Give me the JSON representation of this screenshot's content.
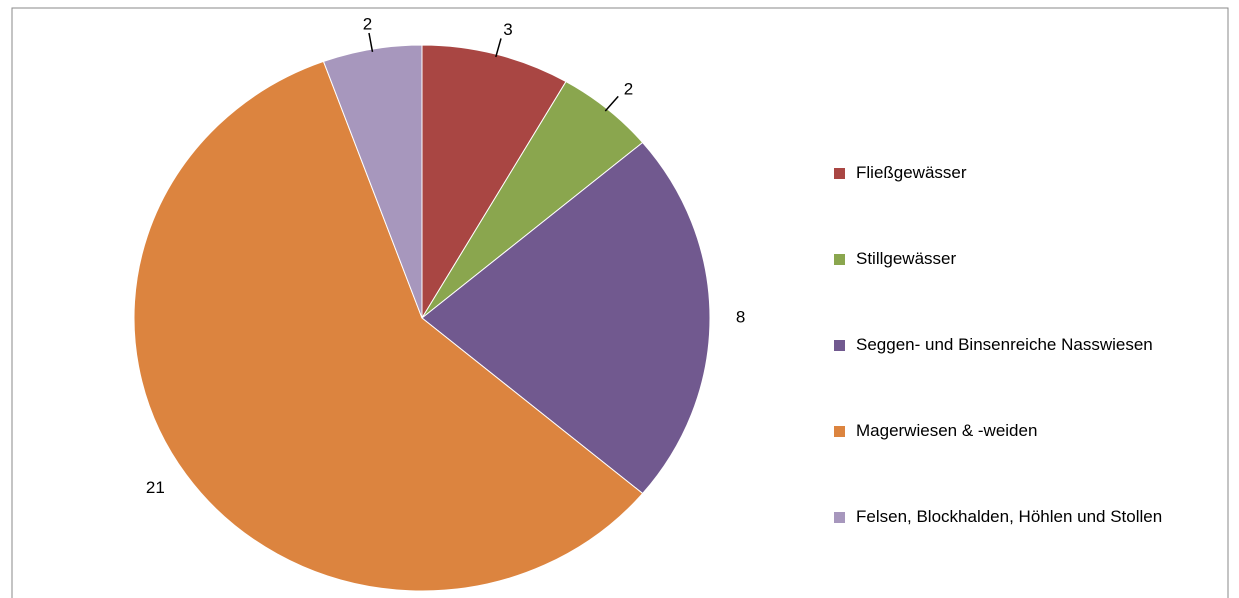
{
  "chart_data": {
    "type": "pie",
    "categories": [
      "Fließgewässer",
      "Stillgewässer",
      "Seggen- und Binsenreiche  Nasswiesen",
      "Magerwiesen & -weiden",
      "Felsen, Blockhalden, Höhlen und Stollen"
    ],
    "values": [
      3,
      2,
      8,
      21,
      2
    ],
    "colors": [
      "#a94643",
      "#8aa64e",
      "#71598f",
      "#dc843f",
      "#a797bd"
    ],
    "legend": "right"
  }
}
